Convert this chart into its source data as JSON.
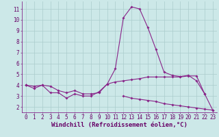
{
  "x": [
    0,
    1,
    2,
    3,
    4,
    5,
    6,
    7,
    8,
    9,
    10,
    11,
    12,
    13,
    14,
    15,
    16,
    17,
    18,
    19,
    20,
    21,
    22,
    23
  ],
  "line1": [
    4.0,
    3.7,
    4.0,
    3.3,
    3.3,
    2.8,
    3.2,
    3.0,
    3.0,
    3.4,
    4.1,
    5.5,
    10.2,
    11.2,
    11.0,
    9.3,
    7.3,
    5.2,
    4.9,
    4.8,
    4.9,
    4.4,
    3.2,
    1.7
  ],
  "line2": [
    4.0,
    3.9,
    4.0,
    3.9,
    3.5,
    3.3,
    3.5,
    3.2,
    3.2,
    3.3,
    4.1,
    4.3,
    4.4,
    4.5,
    4.6,
    4.75,
    4.75,
    4.75,
    4.75,
    4.75,
    4.85,
    4.85,
    3.2,
    null
  ],
  "line3": [
    4.0,
    null,
    null,
    null,
    null,
    null,
    null,
    null,
    null,
    null,
    null,
    null,
    3.0,
    2.8,
    2.7,
    2.6,
    2.5,
    2.3,
    2.2,
    2.1,
    2.0,
    1.9,
    1.8,
    1.7
  ],
  "xlim": [
    -0.5,
    23.5
  ],
  "ylim": [
    1.5,
    11.7
  ],
  "yticks": [
    2,
    3,
    4,
    5,
    6,
    7,
    8,
    9,
    10,
    11
  ],
  "xticks": [
    0,
    1,
    2,
    3,
    4,
    5,
    6,
    7,
    8,
    9,
    10,
    11,
    12,
    13,
    14,
    15,
    16,
    17,
    18,
    19,
    20,
    21,
    22,
    23
  ],
  "line_color": "#882288",
  "bg_color": "#cce8e8",
  "grid_color": "#aacccc",
  "xlabel": "Windchill (Refroidissement éolien,°C)",
  "marker": "D",
  "marker_size": 1.8,
  "linewidth": 0.8,
  "xlabel_fontsize": 6.5,
  "tick_fontsize": 5.5,
  "xlabel_color": "#660066",
  "tick_color": "#660066",
  "spine_color": "#770077"
}
